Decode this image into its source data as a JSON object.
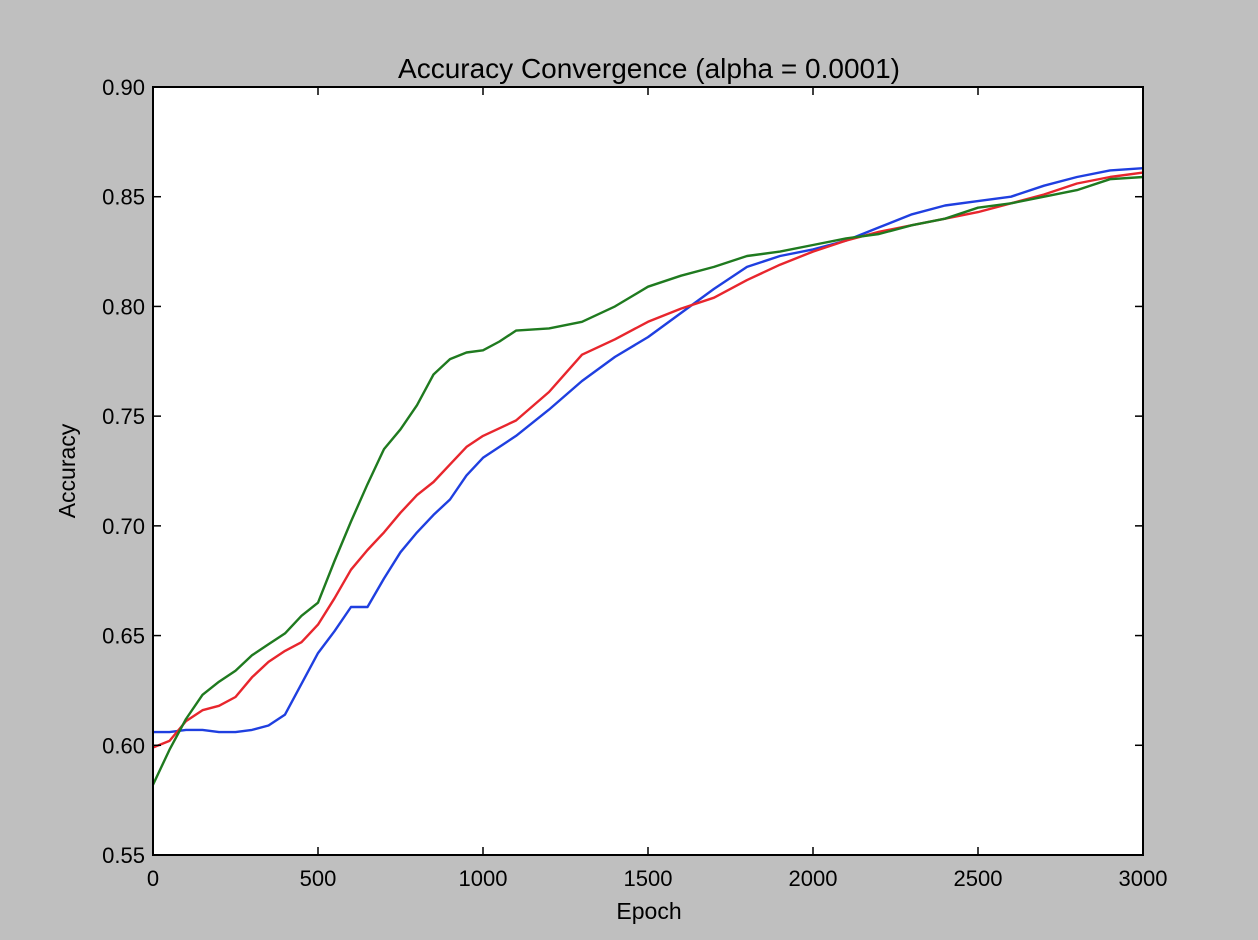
{
  "chart_data": {
    "type": "line",
    "title": "Accuracy Convergence (alpha = 0.0001)",
    "xlabel": "Epoch",
    "ylabel": "Accuracy",
    "xlim": [
      0,
      3000
    ],
    "ylim": [
      0.55,
      0.9
    ],
    "xticks": [
      0,
      500,
      1000,
      1500,
      2000,
      2500,
      3000
    ],
    "xtick_labels": [
      "0",
      "500",
      "1000",
      "1500",
      "2000",
      "2500",
      "3000"
    ],
    "yticks": [
      0.55,
      0.6,
      0.65,
      0.7,
      0.75,
      0.8,
      0.85,
      0.9
    ],
    "ytick_labels": [
      "0.55",
      "0.60",
      "0.65",
      "0.70",
      "0.75",
      "0.80",
      "0.85",
      "0.90"
    ],
    "grid": false,
    "legend": null,
    "series": [
      {
        "color": "#1f3fe0",
        "x": [
          0,
          50,
          100,
          150,
          200,
          250,
          300,
          350,
          400,
          450,
          500,
          550,
          600,
          650,
          700,
          750,
          800,
          850,
          900,
          950,
          1000,
          1100,
          1200,
          1300,
          1400,
          1500,
          1600,
          1700,
          1800,
          1900,
          2000,
          2100,
          2200,
          2300,
          2400,
          2500,
          2600,
          2700,
          2800,
          2900,
          3000
        ],
        "y": [
          0.606,
          0.606,
          0.607,
          0.607,
          0.606,
          0.606,
          0.607,
          0.609,
          0.614,
          0.628,
          0.642,
          0.652,
          0.663,
          0.663,
          0.676,
          0.688,
          0.697,
          0.705,
          0.712,
          0.723,
          0.731,
          0.741,
          0.753,
          0.766,
          0.777,
          0.786,
          0.797,
          0.808,
          0.818,
          0.823,
          0.826,
          0.83,
          0.836,
          0.842,
          0.846,
          0.848,
          0.85,
          0.855,
          0.859,
          0.862,
          0.863
        ]
      },
      {
        "color": "#e8262d",
        "x": [
          0,
          50,
          100,
          150,
          200,
          250,
          300,
          350,
          400,
          450,
          500,
          550,
          600,
          650,
          700,
          750,
          800,
          850,
          900,
          950,
          1000,
          1100,
          1200,
          1300,
          1400,
          1500,
          1600,
          1700,
          1800,
          1900,
          2000,
          2100,
          2200,
          2300,
          2400,
          2500,
          2600,
          2700,
          2800,
          2900,
          3000
        ],
        "y": [
          0.599,
          0.602,
          0.611,
          0.616,
          0.618,
          0.622,
          0.631,
          0.638,
          0.643,
          0.647,
          0.655,
          0.667,
          0.68,
          0.689,
          0.697,
          0.706,
          0.714,
          0.72,
          0.728,
          0.736,
          0.741,
          0.748,
          0.761,
          0.778,
          0.785,
          0.793,
          0.799,
          0.804,
          0.812,
          0.819,
          0.825,
          0.83,
          0.834,
          0.837,
          0.84,
          0.843,
          0.847,
          0.851,
          0.856,
          0.859,
          0.861
        ]
      },
      {
        "color": "#1f7a1f",
        "x": [
          0,
          50,
          100,
          150,
          200,
          250,
          300,
          350,
          400,
          450,
          500,
          550,
          600,
          650,
          700,
          750,
          800,
          850,
          900,
          950,
          1000,
          1050,
          1100,
          1200,
          1300,
          1400,
          1500,
          1600,
          1700,
          1800,
          1900,
          2000,
          2100,
          2200,
          2300,
          2400,
          2500,
          2600,
          2700,
          2800,
          2900,
          3000
        ],
        "y": [
          0.582,
          0.598,
          0.612,
          0.623,
          0.629,
          0.634,
          0.641,
          0.646,
          0.651,
          0.659,
          0.665,
          0.684,
          0.702,
          0.719,
          0.735,
          0.744,
          0.755,
          0.769,
          0.776,
          0.779,
          0.78,
          0.784,
          0.789,
          0.79,
          0.793,
          0.8,
          0.809,
          0.814,
          0.818,
          0.823,
          0.825,
          0.828,
          0.831,
          0.833,
          0.837,
          0.84,
          0.845,
          0.847,
          0.85,
          0.853,
          0.858,
          0.859
        ]
      }
    ]
  }
}
